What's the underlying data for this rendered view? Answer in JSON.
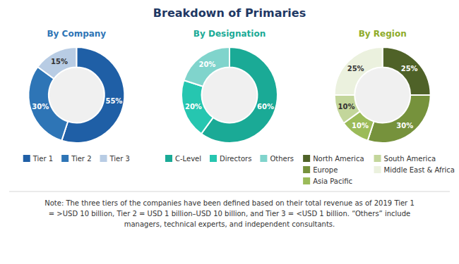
{
  "title": "Breakdown of Primaries",
  "annotations": [
    "Note: The three tiers of the companies have been defined based on their total revenue as of 2019 Tier 1\n= >USD 10 billion, Tier 2 = USD 1 billion–USD 10 billion, and Tier 3 = <USD 1 billion. “Others” include\nmanagers, technical experts, and independent consultants."
  ],
  "chart_data": [
    {
      "type": "donut",
      "title": "By Company",
      "categories": [
        "Tier 1",
        "Tier 2",
        "Tier 3"
      ],
      "values": [
        55,
        30,
        15
      ],
      "value_labels": [
        "55%",
        "30%",
        "15%"
      ],
      "colors": [
        "#1f5fa6",
        "#2e75b6",
        "#b8cce4"
      ],
      "color": "#2e75b6",
      "data_labels": true,
      "legend": "bottom"
    },
    {
      "type": "donut",
      "title": "By Designation",
      "categories": [
        "C-Level",
        "Directors",
        "Others"
      ],
      "values": [
        60,
        20,
        20
      ],
      "value_labels": [
        "60%",
        "20%",
        "20%"
      ],
      "colors": [
        "#1aaa96",
        "#26c6b0",
        "#80d4cc"
      ],
      "color": "#1aaa96",
      "data_labels": true,
      "legend": "bottom"
    },
    {
      "type": "donut",
      "title": "By Region",
      "categories": [
        "North America",
        "Europe",
        "Asia Pacific",
        "South America",
        "Middle East & Africa"
      ],
      "values": [
        25,
        30,
        10,
        10,
        25
      ],
      "value_labels": [
        "25%",
        "30%",
        "10%",
        "10%",
        "25%"
      ],
      "colors": [
        "#4f6228",
        "#76923c",
        "#9bbb59",
        "#c3d69b",
        "#ebf1de"
      ],
      "color": "#8fac2a",
      "data_labels": true,
      "legend": "bottom"
    }
  ]
}
